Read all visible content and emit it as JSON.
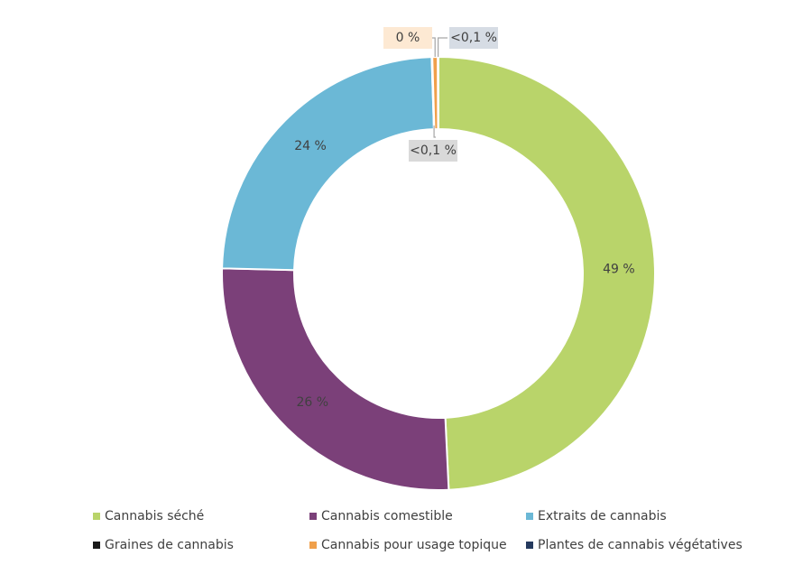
{
  "chart_data": {
    "type": "donut",
    "categories": [
      "Cannabis séché",
      "Cannabis comestible",
      "Extraits de cannabis",
      "Graines de cannabis",
      "Cannabis pour usage topique",
      "Plantes de cannabis végétatives"
    ],
    "values": [
      49,
      26,
      24,
      0.05,
      0.4,
      0.05
    ],
    "value_labels": [
      "49 %",
      "26 %",
      "24 %",
      "<0,1 %",
      "0 %",
      "<0,1 %"
    ],
    "colors": [
      "#b9d46a",
      "#7b4079",
      "#6bb8d6",
      "#1a1a1a",
      "#f0a04b",
      "#253a5e"
    ]
  }
}
